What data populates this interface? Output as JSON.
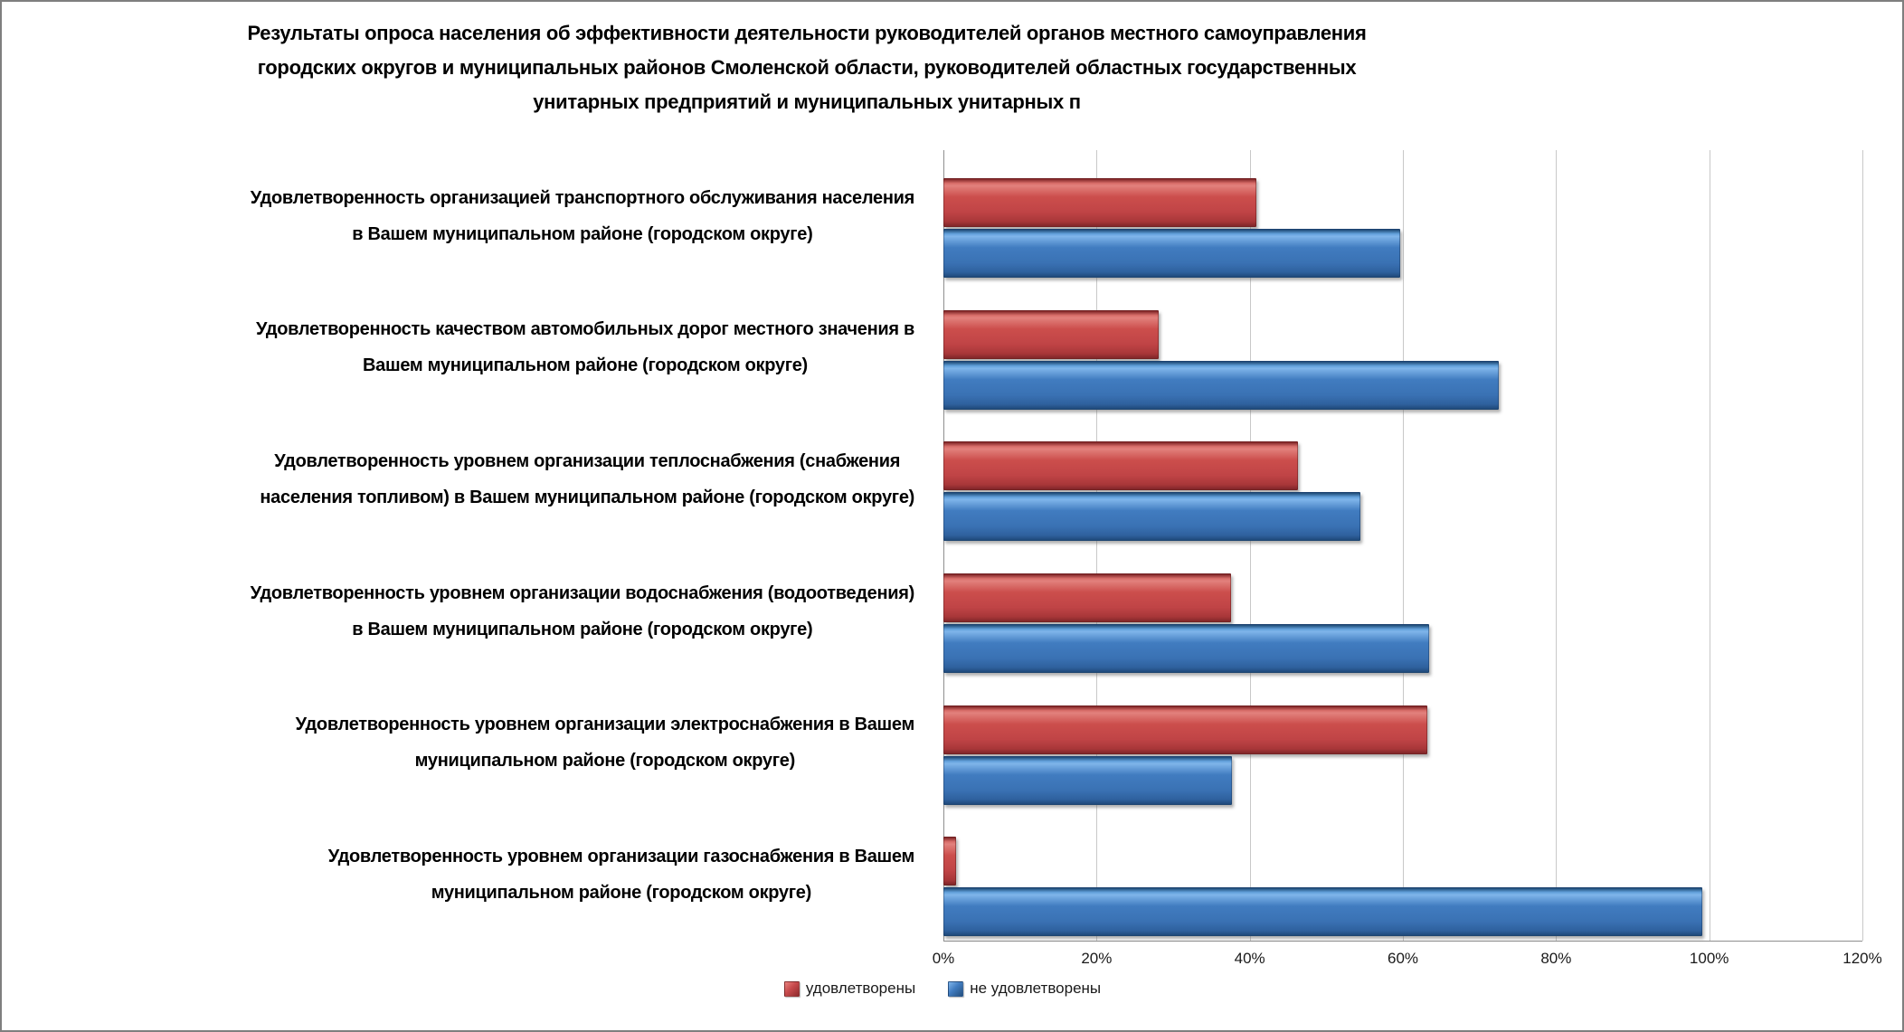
{
  "window": {
    "background": "#ffffff",
    "border_color": "#7f7f7f"
  },
  "chart_data": {
    "type": "bar",
    "orientation": "horizontal",
    "title": "Результаты опроса населения об эффективности деятельности руководителей органов местного самоуправления городских округов и муниципальных районов Смоленской области, руководителей областных государственных унитарных предприятий и муниципальных унитарных п",
    "title_lines": [
      "Результаты опроса населения об эффективности деятельности руководителей органов местного самоуправления",
      "городских округов и муниципальных районов Смоленской области, руководителей областных государственных",
      "унитарных предприятий и муниципальных унитарных п"
    ],
    "categories": [
      {
        "lines": [
          "Удовлетворенность организацией транспортного обслуживания населения",
          "в Вашем муниципальном районе (городском округе)"
        ]
      },
      {
        "lines": [
          "Удовлетворенность качеством автомобильных дорог местного значения в",
          "Вашем муниципальном районе (городском округе)"
        ]
      },
      {
        "lines": [
          "Удовлетворенность уровнем организации теплоснабжения (снабжения",
          "населения топливом) в Вашем муниципальном районе (городском округе)"
        ]
      },
      {
        "lines": [
          "Удовлетворенность уровнем организации водоснабжения (водоотведения)",
          "в Вашем муниципальном районе (городском округе)"
        ]
      },
      {
        "lines": [
          "Удовлетворенность уровнем организации электроснабжения в Вашем",
          "муниципальном районе (городском округе)"
        ]
      },
      {
        "lines": [
          "Удовлетворенность уровнем организации газоснабжения в Вашем",
          "муниципальном районе (городском округе)"
        ]
      }
    ],
    "series": [
      {
        "name": "удовлетворены",
        "color": "#C0504D",
        "values": [
          40.6,
          27.9,
          46.1,
          37.3,
          63.0,
          1.4
        ]
      },
      {
        "name": "не удовлетворены",
        "color": "#4F81BD",
        "values": [
          59.4,
          72.3,
          54.2,
          63.2,
          37.4,
          98.9
        ]
      }
    ],
    "xlabel": "",
    "ylabel": "",
    "xlim": [
      0,
      120
    ],
    "x_ticks": [
      "0%",
      "20%",
      "40%",
      "60%",
      "80%",
      "100%",
      "120%"
    ],
    "grid": true,
    "legend_position": "bottom"
  }
}
